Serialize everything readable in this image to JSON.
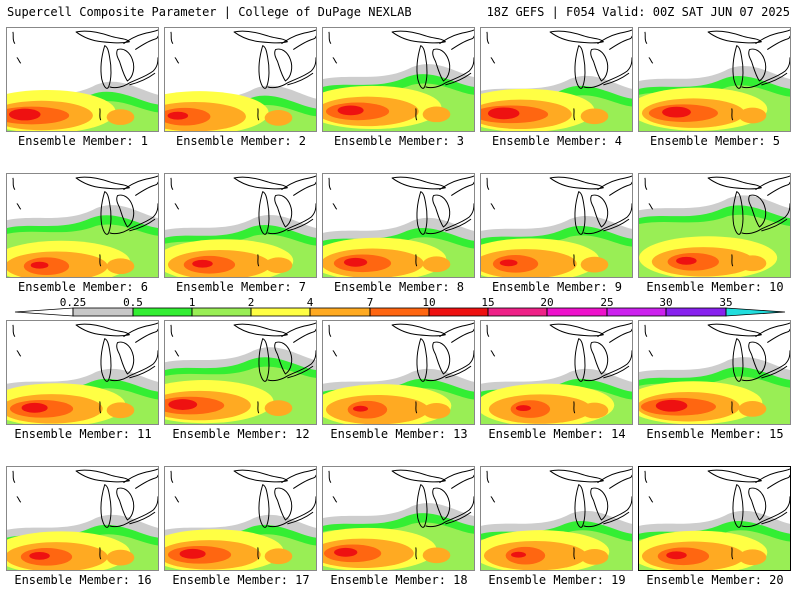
{
  "header": {
    "left": "Supercell Composite Parameter | College of DuPage NEXLAB",
    "right": "18Z GEFS | F054 Valid: 00Z SAT JUN 07 2025"
  },
  "member_label_prefix": "Ensemble Member:",
  "members": [
    {
      "number": "1",
      "label": "Ensemble Member: 1"
    },
    {
      "number": "2",
      "label": "Ensemble Member: 2"
    },
    {
      "number": "3",
      "label": "Ensemble Member: 3"
    },
    {
      "number": "4",
      "label": "Ensemble Member: 4"
    },
    {
      "number": "5",
      "label": "Ensemble Member: 5"
    },
    {
      "number": "6",
      "label": "Ensemble Member: 6"
    },
    {
      "number": "7",
      "label": "Ensemble Member: 7"
    },
    {
      "number": "8",
      "label": "Ensemble Member: 8"
    },
    {
      "number": "9",
      "label": "Ensemble Member: 9"
    },
    {
      "number": "10",
      "label": "Ensemble Member: 10"
    },
    {
      "number": "11",
      "label": "Ensemble Member: 11"
    },
    {
      "number": "12",
      "label": "Ensemble Member: 12"
    },
    {
      "number": "13",
      "label": "Ensemble Member: 13"
    },
    {
      "number": "14",
      "label": "Ensemble Member: 14"
    },
    {
      "number": "15",
      "label": "Ensemble Member: 15"
    },
    {
      "number": "16",
      "label": "Ensemble Member: 16"
    },
    {
      "number": "17",
      "label": "Ensemble Member: 17"
    },
    {
      "number": "18",
      "label": "Ensemble Member: 18"
    },
    {
      "number": "19",
      "label": "Ensemble Member: 19"
    },
    {
      "number": "20",
      "label": "Ensemble Member: 20"
    }
  ],
  "colorbar": {
    "ticks": [
      "0.25",
      "0.5",
      "1",
      "2",
      "4",
      "7",
      "10",
      "15",
      "20",
      "25",
      "30",
      "35"
    ],
    "colors": [
      "#c8c8c8",
      "#33ee33",
      "#99ee55",
      "#ffff44",
      "#ffaa22",
      "#ff6611",
      "#ee1111",
      "#ee2288",
      "#ee11cc",
      "#cc22ee",
      "#8822ee",
      "#aa66dd",
      "#22dddd"
    ]
  },
  "field_colors": {
    "gray": "#c8c8c8",
    "green": "#33ee33",
    "lightgreen": "#99ee55",
    "yellow": "#ffff44",
    "orange": "#ffaa22",
    "darkorange": "#ff6611",
    "red": "#ee1111"
  },
  "map_lines_color": "#000000"
}
